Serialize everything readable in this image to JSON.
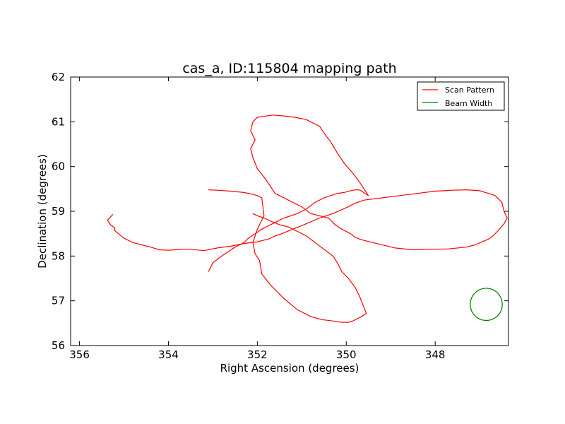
{
  "chart_data": {
    "type": "line",
    "title": "cas_a, ID:115804 mapping path",
    "xlabel": "Right Ascension (degrees)",
    "ylabel": "Declination (degrees)",
    "xlim": [
      356.2,
      346.35
    ],
    "ylim": [
      56,
      62
    ],
    "x_inverted": true,
    "xticks": [
      356,
      354,
      352,
      350,
      348
    ],
    "yticks": [
      56,
      57,
      58,
      59,
      60,
      61,
      62
    ],
    "grid": false,
    "legend_position": "top-right",
    "series": [
      {
        "name": "Scan Pattern",
        "color": "#ff0000",
        "x": [
          355.25,
          355.37,
          355.3,
          355.2,
          355.22,
          355.1,
          355.0,
          354.8,
          354.6,
          354.4,
          354.2,
          354.0,
          353.7,
          353.5,
          353.2,
          352.9,
          352.6,
          352.3,
          352.0,
          351.75,
          351.6,
          351.45,
          351.2,
          350.9,
          350.6,
          350.3,
          350.0,
          349.8,
          349.6,
          349.2,
          348.8,
          348.4,
          348.0,
          347.6,
          347.3,
          347.0,
          346.8,
          346.65,
          346.5,
          346.45,
          346.38,
          346.45,
          346.6,
          346.7,
          346.8,
          347.1,
          347.3,
          347.7,
          348.1,
          348.5,
          348.9,
          349.4,
          349.6,
          349.7,
          349.8,
          349.9,
          350.0,
          350.1,
          350.25,
          350.4,
          350.8,
          351.0,
          351.3,
          351.6,
          351.8,
          352.0,
          352.1,
          352.15,
          352.05,
          352.15,
          352.1,
          352.0,
          351.85,
          351.65,
          351.4,
          351.15,
          350.9,
          350.6,
          350.5,
          350.35,
          350.2,
          350.05,
          349.85,
          349.7,
          349.6,
          349.5,
          349.58,
          349.65,
          349.72,
          349.78,
          349.85,
          349.9,
          350.05,
          350.2,
          350.35,
          350.5,
          350.7,
          350.9,
          351.1,
          351.4,
          351.6,
          351.9,
          352.05,
          352.2,
          352.3,
          352.5,
          352.8,
          353.0,
          353.1
        ],
        "y": [
          58.93,
          58.8,
          58.7,
          58.62,
          58.58,
          58.48,
          58.4,
          58.3,
          58.25,
          58.2,
          58.14,
          58.13,
          58.15,
          58.15,
          58.12,
          58.18,
          58.22,
          58.28,
          58.32,
          58.38,
          58.45,
          58.5,
          58.6,
          58.72,
          58.85,
          58.95,
          59.08,
          59.18,
          59.25,
          59.3,
          59.35,
          59.4,
          59.45,
          59.47,
          59.48,
          59.46,
          59.4,
          59.35,
          59.2,
          59.0,
          58.85,
          58.72,
          58.55,
          58.45,
          58.38,
          58.25,
          58.2,
          58.16,
          58.15,
          58.14,
          58.18,
          58.3,
          58.35,
          58.38,
          58.42,
          58.5,
          58.55,
          58.6,
          58.7,
          58.85,
          58.95,
          59.1,
          59.25,
          59.4,
          59.7,
          59.95,
          60.2,
          60.4,
          60.6,
          60.8,
          61.0,
          61.1,
          61.12,
          61.15,
          61.13,
          61.1,
          61.05,
          60.9,
          60.75,
          60.55,
          60.3,
          60.08,
          59.85,
          59.65,
          59.5,
          59.35,
          59.4,
          59.45,
          59.48,
          59.48,
          59.47,
          59.46,
          59.42,
          59.4,
          59.35,
          59.3,
          59.2,
          59.05,
          58.95,
          58.85,
          58.75,
          58.6,
          58.5,
          58.4,
          58.3,
          58.2,
          58.0,
          57.85,
          57.65
        ],
        "segment2_x": [
          353.1,
          352.9,
          352.6,
          352.3,
          352.1,
          352.0,
          351.9,
          351.85,
          352.0,
          352.1,
          352.05,
          351.95,
          351.9,
          351.7,
          351.4,
          351.1,
          350.8,
          350.55,
          350.3,
          350.1,
          349.95,
          349.85,
          349.75,
          349.65,
          349.55,
          349.6,
          349.7,
          349.8,
          349.95,
          350.1,
          350.2,
          350.3,
          350.5,
          350.7,
          350.9,
          351.1,
          351.3,
          351.5,
          351.7,
          351.85,
          352.0,
          352.1
        ],
        "segment2_y": [
          59.48,
          59.47,
          59.45,
          59.42,
          59.38,
          59.35,
          59.3,
          58.9,
          58.6,
          58.3,
          58.05,
          57.9,
          57.6,
          57.35,
          57.05,
          56.8,
          56.65,
          56.58,
          56.55,
          56.52,
          56.52,
          56.55,
          56.6,
          56.65,
          56.72,
          56.85,
          57.1,
          57.3,
          57.5,
          57.65,
          57.85,
          58.0,
          58.15,
          58.3,
          58.45,
          58.55,
          58.65,
          58.7,
          58.78,
          58.85,
          58.9,
          58.95
        ]
      },
      {
        "name": "Beam Width",
        "color": "#008000",
        "center": [
          346.85,
          56.92
        ],
        "radius_x_deg": 0.36,
        "radius_y_deg": 0.36
      }
    ]
  }
}
